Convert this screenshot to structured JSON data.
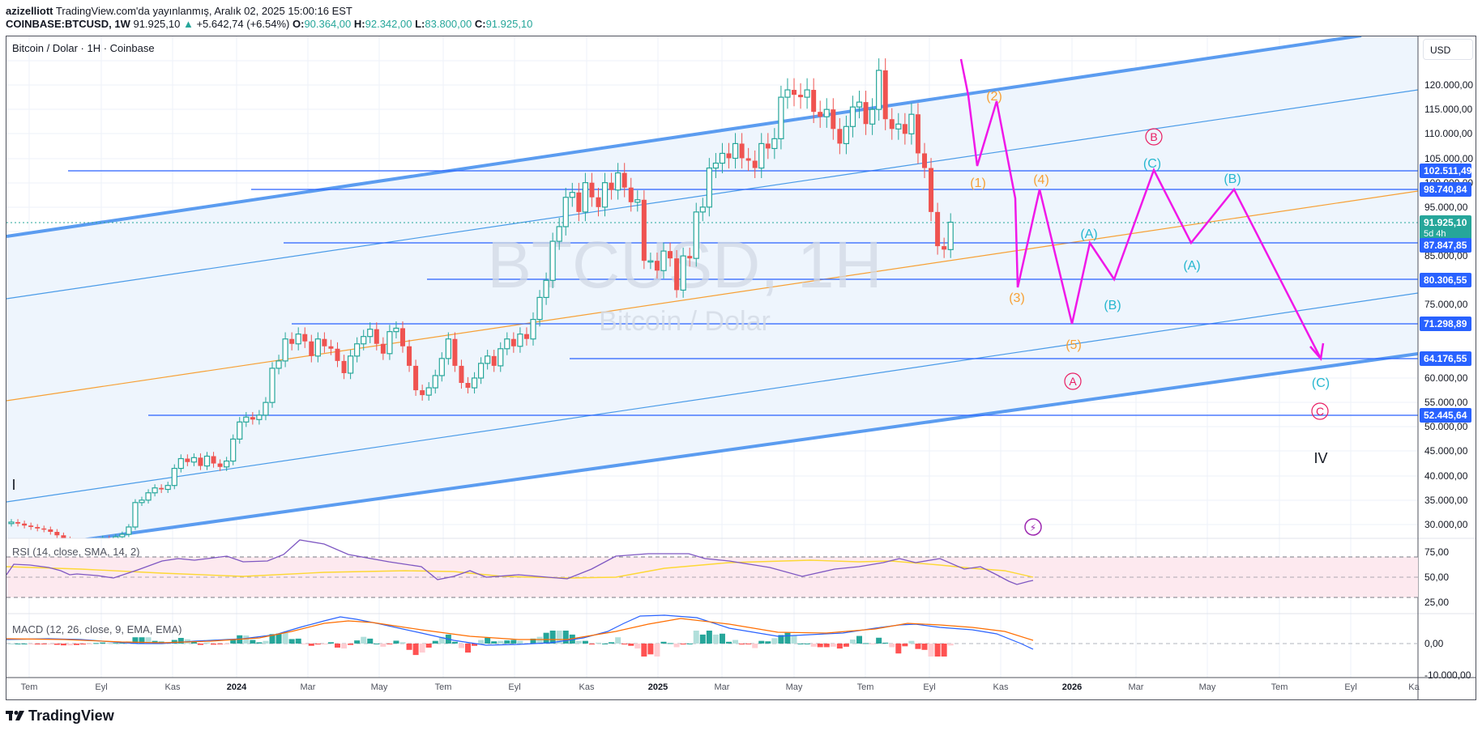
{
  "header": {
    "author": "azizelliott",
    "published_text": "TradingView.com'da yayınlanmış, Aralık 02, 2025 15:00:16 EST",
    "symbol": "COINBASE:BTCUSD, 1W",
    "last_price": "91.925,10",
    "change": "+5.642,74 (+6.54%)",
    "o_label": "O:",
    "o_value": "90.364,00",
    "h_label": "H:",
    "h_value": "92.342,00",
    "l_label": "L:",
    "l_value": "83.800,00",
    "c_label": "C:",
    "c_value": "91.925,10"
  },
  "chart": {
    "title": "Bitcoin / Dolar · 1H · Coinbase",
    "watermark_main": "BTCUSD, 1H",
    "watermark_sub": "Bitcoin / Dolar",
    "currency": "USD",
    "colors": {
      "up": "#26a69a",
      "down": "#ef5350",
      "channel": "#5b9cf0",
      "level": "#2962ff",
      "wave": "#f018e8",
      "orange": "#f7a035",
      "cyan": "#26b7cf",
      "red_circle": "#e91e63"
    }
  },
  "price_axis": {
    "ticks": [
      "120.000,00",
      "115.000,00",
      "110.000,00",
      "105.000,00",
      "100.000,00",
      "95.000,00",
      "85.000,00",
      "75.000,00",
      "60.000,00",
      "55.000,00",
      "50.000,00",
      "45.000,00",
      "40.000,00",
      "35.000,00",
      "30.000,00"
    ],
    "level_tags": [
      "102.511,49",
      "98.740,84",
      "87.847,85",
      "80.306,55",
      "71.298,89",
      "64.176,55",
      "52.445,64"
    ],
    "current_price_tag": "91.925,10",
    "current_price_countdown": "5d 4h"
  },
  "rsi": {
    "title": "RSI (14, close, SMA, 14, 2)",
    "ticks": [
      "75,00",
      "50,00",
      "25,00"
    ]
  },
  "macd": {
    "title": "MACD (12, 26, close, 9, EMA, EMA)",
    "ticks": [
      "0,00",
      "-10.000,00"
    ]
  },
  "time_axis": {
    "labels": [
      "Tem",
      "Eyl",
      "Kas",
      "2024",
      "Mar",
      "May",
      "Tem",
      "Eyl",
      "Kas",
      "2025",
      "Mar",
      "May",
      "Tem",
      "Eyl",
      "Kas",
      "2026",
      "Mar",
      "May",
      "Tem",
      "Eyl",
      "Ka"
    ]
  },
  "wave_labels": {
    "orange": [
      "(1)",
      "(2)",
      "(3)",
      "(4)",
      "(5)"
    ],
    "cyan": [
      "(A)",
      "(B)",
      "(C)",
      "(A)",
      "(B)",
      "(C)"
    ],
    "circled": [
      "A",
      "B",
      "C"
    ],
    "roman": [
      "I",
      "IV"
    ]
  },
  "footer": {
    "brand": "TradingView"
  },
  "chart_data": {
    "type": "candlestick",
    "title": "Bitcoin / Dolar · 1H · Coinbase",
    "symbol": "COINBASE:BTCUSD",
    "interval": "1W",
    "ylabel": "USD",
    "ylim": [
      28000,
      125000
    ],
    "last": {
      "open": 90364.0,
      "high": 92342.0,
      "low": 83800.0,
      "close": 91925.1,
      "change": 5642.74,
      "change_pct": 6.54
    },
    "horizontal_levels": [
      102511.49,
      98740.84,
      87847.85,
      80306.55,
      71298.89,
      64176.55,
      52445.64
    ],
    "x_ticks": [
      "Tem",
      "Eyl",
      "Kas",
      "2024",
      "Mar",
      "May",
      "Tem",
      "Eyl",
      "Kas",
      "2025",
      "Mar",
      "May",
      "Tem",
      "Eyl",
      "Kas",
      "2026",
      "Mar",
      "May",
      "Tem",
      "Eyl",
      "Ka"
    ],
    "projected_path_approx": [
      {
        "label": "(3)",
        "price": 80000
      },
      {
        "label": "(4)",
        "price": 98740
      },
      {
        "label": "(5)",
        "price": 71300
      },
      {
        "label": "(A)",
        "price": 87850
      },
      {
        "label": "(B)",
        "price": 80300
      },
      {
        "label": "(C)",
        "price": 102500
      },
      {
        "label": "(A)",
        "price": 87850
      },
      {
        "label": "(B)",
        "price": 98740
      },
      {
        "label": "(C)",
        "price": 64176
      }
    ],
    "indicators": [
      {
        "name": "RSI (14, close, SMA, 14, 2)",
        "levels": [
          70,
          50,
          30
        ],
        "last_approx": 40
      },
      {
        "name": "MACD (12, 26, close, 9, EMA, EMA)",
        "zero_line": 0,
        "last_hist": "negative"
      }
    ],
    "grid": true
  }
}
